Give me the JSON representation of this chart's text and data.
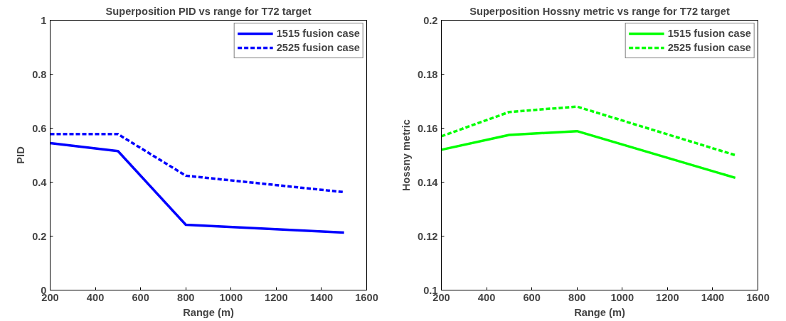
{
  "chart_data": [
    {
      "type": "line",
      "title": "Superposition PID vs range for T72 target",
      "xlabel": "Range (m)",
      "ylabel": "PID",
      "x": [
        200,
        500,
        800,
        1500
      ],
      "xlim": [
        200,
        1600
      ],
      "xticks": [
        200,
        400,
        600,
        800,
        1000,
        1200,
        1400,
        1600
      ],
      "ylim": [
        0,
        1
      ],
      "yticks": [
        0,
        0.2,
        0.4,
        0.6,
        0.8,
        1
      ],
      "grid": false,
      "legend": "top right",
      "series": [
        {
          "name": "1515 fusion case",
          "color": "#0000ff",
          "line_style": "solid",
          "values": [
            0.545,
            0.515,
            0.242,
            0.213
          ]
        },
        {
          "name": "2525 fusion case",
          "color": "#0000ff",
          "line_style": "dashed",
          "values": [
            0.578,
            0.578,
            0.424,
            0.363
          ]
        }
      ]
    },
    {
      "type": "line",
      "title": "Superposition Hossny metric vs range for T72 target",
      "xlabel": "Range (m)",
      "ylabel": "Hossny metric",
      "x": [
        200,
        500,
        800,
        1500
      ],
      "xlim": [
        200,
        1600
      ],
      "xticks": [
        200,
        400,
        600,
        800,
        1000,
        1200,
        1400,
        1600
      ],
      "ylim": [
        0.1,
        0.2
      ],
      "yticks": [
        0.1,
        0.12,
        0.14,
        0.16,
        0.18,
        0.2
      ],
      "grid": false,
      "legend": "top right",
      "series": [
        {
          "name": "1515 fusion case",
          "color": "#00ff00",
          "line_style": "solid",
          "values": [
            0.152,
            0.1575,
            0.1589,
            0.1416
          ]
        },
        {
          "name": "2525 fusion case",
          "color": "#00ff00",
          "line_style": "dashed",
          "values": [
            0.157,
            0.166,
            0.168,
            0.15
          ]
        }
      ]
    }
  ]
}
